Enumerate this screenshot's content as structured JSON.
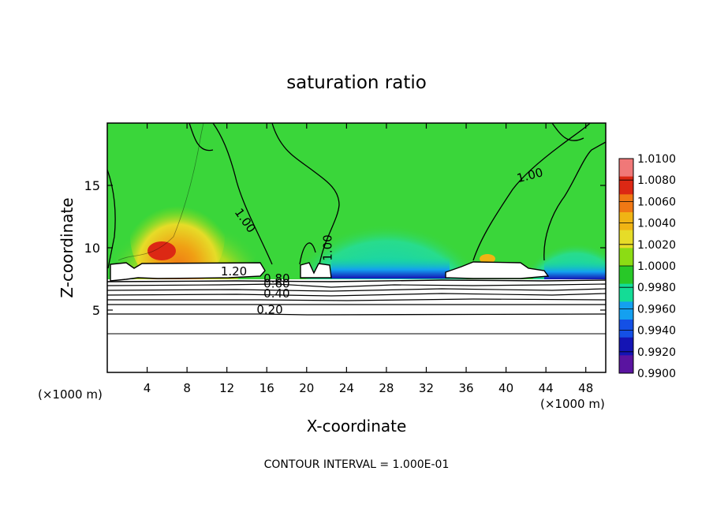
{
  "chart_data": {
    "type": "heatmap",
    "title": "saturation ratio",
    "xlabel": "X-coordinate",
    "ylabel": "Z-coordinate",
    "x_unit": "(×1000 m)",
    "z_unit": "(×1000 m)",
    "xlim": [
      0,
      50
    ],
    "ylim": [
      0,
      20
    ],
    "x_ticks": [
      4,
      8,
      12,
      16,
      20,
      24,
      28,
      32,
      36,
      40,
      44,
      48
    ],
    "y_ticks": [
      5,
      10,
      15
    ],
    "contour_interval_text": "CONTOUR INTERVAL = 1.000E-01",
    "contour_labels": [
      {
        "text": "1.00",
        "x": 13.5,
        "z": 12.0,
        "rotate": 55
      },
      {
        "text": "1.00",
        "x": 22.5,
        "z": 10.0,
        "rotate": -90
      },
      {
        "text": "1.00",
        "x": 42.5,
        "z": 15.5,
        "rotate": -15
      },
      {
        "text": "1.20",
        "x": 12.7,
        "z": 7.8,
        "rotate": 0
      },
      {
        "text": "0.80",
        "x": 17.0,
        "z": 7.2,
        "rotate": 0
      },
      {
        "text": "0.60",
        "x": 17.0,
        "z": 6.8,
        "rotate": 0
      },
      {
        "text": "0.40",
        "x": 17.0,
        "z": 6.0,
        "rotate": 0
      },
      {
        "text": "0.20",
        "x": 16.3,
        "z": 4.7,
        "rotate": 0
      }
    ],
    "colorbar": {
      "min": 0.99,
      "max": 1.01,
      "tick_labels": [
        "1.0100",
        "1.0080",
        "1.0060",
        "1.0040",
        "1.0020",
        "1.0000",
        "0.9980",
        "0.9960",
        "0.9940",
        "0.9920",
        "0.9900"
      ],
      "colors": [
        "#f07878",
        "#dc2814",
        "#f07814",
        "#f0b414",
        "#e6dc28",
        "#8cdc14",
        "#28c828",
        "#14dc96",
        "#14a0f0",
        "#1450e6",
        "#1414b4",
        "#5a14a0"
      ]
    },
    "colors": {
      "background_green": "#3ad63a",
      "cloud_fill": "#ffffff"
    }
  }
}
